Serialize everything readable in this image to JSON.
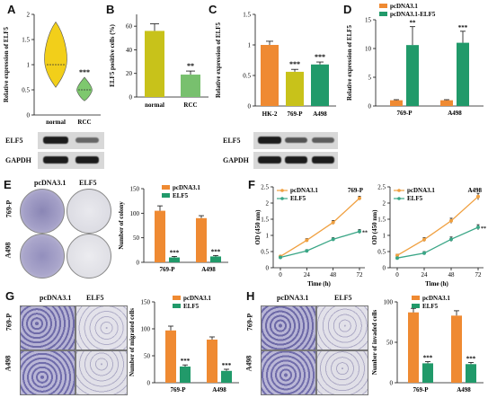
{
  "colors": {
    "normal": "#c8c21a",
    "rcc": "#78c06e",
    "orange": "#ef8a32",
    "green": "#219a6a",
    "line_orange": "#f0a040",
    "line_green": "#3aa686",
    "violin": "#f2cf1a",
    "violin_rcc": "#7ec86e"
  },
  "panels": {
    "a": {
      "letter": "A",
      "ylabel": "Relative expression of ELF5",
      "blot_labels": [
        "ELF5",
        "GAPDH"
      ]
    },
    "b": {
      "letter": "B",
      "ylabel": "ELF5 positive cells (%)"
    },
    "c": {
      "letter": "C",
      "ylabel": "Relative expression of ELF5",
      "blot_labels": [
        "ELF5",
        "GAPDH"
      ]
    },
    "d": {
      "letter": "D",
      "ylabel": "Relative expression of ELF5"
    },
    "e": {
      "letter": "E",
      "ylabel": "Number of colony",
      "img_cols": [
        "pcDNA3.1",
        "ELF5"
      ],
      "img_rows": [
        "769-P",
        "A498"
      ]
    },
    "f": {
      "letter": "F",
      "ylabel": "OD (450 nm)",
      "xlabel": "Time (h)"
    },
    "g": {
      "letter": "G",
      "ylabel": "Number of migrated cells",
      "img_cols": [
        "pcDNA3.1",
        "ELF5"
      ],
      "img_rows": [
        "769-P",
        "A498"
      ]
    },
    "h": {
      "letter": "H",
      "ylabel": "Number of invaded cells",
      "img_cols": [
        "pcDNA3.1",
        "ELF5"
      ],
      "img_rows": [
        "769-P",
        "A498"
      ]
    }
  },
  "chart_data": [
    {
      "id": "A",
      "type": "violin",
      "categories": [
        "normal",
        "RCC"
      ],
      "yticks": [
        0.0,
        0.5,
        1.0,
        1.5,
        2.0
      ],
      "ylim": [
        0,
        2.0
      ],
      "median": [
        1.0,
        0.5
      ],
      "sig": [
        "",
        "***"
      ]
    },
    {
      "id": "B",
      "type": "bar",
      "categories": [
        "normal",
        "RCC"
      ],
      "values": [
        56,
        19
      ],
      "errors": [
        6,
        3
      ],
      "yticks": [
        0,
        20,
        40,
        60
      ],
      "ylim": [
        0,
        70
      ],
      "sig": [
        "",
        "**"
      ]
    },
    {
      "id": "C",
      "type": "bar",
      "categories": [
        "HK-2",
        "769-P",
        "A498"
      ],
      "values": [
        1.0,
        0.56,
        0.68
      ],
      "errors": [
        0.06,
        0.04,
        0.04
      ],
      "yticks": [
        0.0,
        0.5,
        1.0,
        1.5
      ],
      "ylim": [
        0,
        1.5
      ],
      "sig": [
        "",
        "***",
        "***"
      ]
    },
    {
      "id": "D",
      "type": "bar",
      "categories": [
        "769-P",
        "A498"
      ],
      "yticks": [
        0,
        5,
        10,
        15
      ],
      "ylim": [
        0,
        15
      ],
      "series": [
        {
          "name": "pcDNA3.1",
          "values": [
            1.0,
            1.0
          ],
          "errors": [
            0.1,
            0.1
          ]
        },
        {
          "name": "pcDNA3.1-ELF5",
          "values": [
            10.6,
            11.0
          ],
          "errors": [
            3.2,
            2.0
          ]
        }
      ],
      "sig": [
        "**",
        "***"
      ]
    },
    {
      "id": "E",
      "type": "bar",
      "categories": [
        "769-P",
        "A498"
      ],
      "yticks": [
        0,
        50,
        100,
        150
      ],
      "ylim": [
        0,
        150
      ],
      "series": [
        {
          "name": "pcDNA3.1",
          "values": [
            105,
            90
          ],
          "errors": [
            10,
            5
          ]
        },
        {
          "name": "ELF5",
          "values": [
            10,
            12
          ],
          "errors": [
            2,
            2
          ]
        }
      ],
      "sig": [
        "***",
        "***"
      ]
    },
    {
      "id": "F1",
      "type": "line",
      "title": "769-P",
      "x": [
        0,
        24,
        48,
        72
      ],
      "xticks": [
        0,
        24,
        48,
        72
      ],
      "yticks": [
        0.0,
        0.5,
        1.0,
        1.5,
        2.0,
        2.5
      ],
      "ylim": [
        0,
        2.5
      ],
      "series": [
        {
          "name": "pcDNA3.1",
          "values": [
            0.35,
            0.85,
            1.4,
            2.15
          ],
          "errors": [
            0.03,
            0.05,
            0.06,
            0.06
          ]
        },
        {
          "name": "ELF5",
          "values": [
            0.32,
            0.52,
            0.88,
            1.12
          ],
          "errors": [
            0.03,
            0.04,
            0.05,
            0.06
          ]
        }
      ],
      "sig": "**"
    },
    {
      "id": "F2",
      "type": "line",
      "title": "A498",
      "x": [
        0,
        24,
        48,
        72
      ],
      "xticks": [
        0,
        24,
        48,
        72
      ],
      "yticks": [
        0.0,
        0.5,
        1.0,
        1.5,
        2.0,
        2.5
      ],
      "ylim": [
        0,
        2.5
      ],
      "series": [
        {
          "name": "pcDNA3.1",
          "values": [
            0.38,
            0.87,
            1.45,
            2.2
          ],
          "errors": [
            0.04,
            0.06,
            0.08,
            0.1
          ]
        },
        {
          "name": "ELF5",
          "values": [
            0.3,
            0.45,
            0.88,
            1.25
          ],
          "errors": [
            0.03,
            0.05,
            0.07,
            0.08
          ]
        }
      ],
      "sig": "**"
    },
    {
      "id": "G",
      "type": "bar",
      "categories": [
        "769-P",
        "A498"
      ],
      "yticks": [
        0,
        50,
        100,
        150
      ],
      "ylim": [
        0,
        150
      ],
      "series": [
        {
          "name": "pcDNA3.1",
          "values": [
            97,
            80
          ],
          "errors": [
            8,
            5
          ]
        },
        {
          "name": "ELF5",
          "values": [
            30,
            22
          ],
          "errors": [
            3,
            3
          ]
        }
      ],
      "sig": [
        "***",
        "***"
      ]
    },
    {
      "id": "H",
      "type": "bar",
      "categories": [
        "769-P",
        "A498"
      ],
      "yticks": [
        0,
        50,
        100
      ],
      "ylim": [
        0,
        100
      ],
      "series": [
        {
          "name": "pcDNA3.1",
          "values": [
            87,
            83
          ],
          "errors": [
            5,
            6
          ]
        },
        {
          "name": "ELF5",
          "values": [
            24,
            23
          ],
          "errors": [
            2,
            2
          ]
        }
      ],
      "sig": [
        "***",
        "***"
      ]
    }
  ]
}
